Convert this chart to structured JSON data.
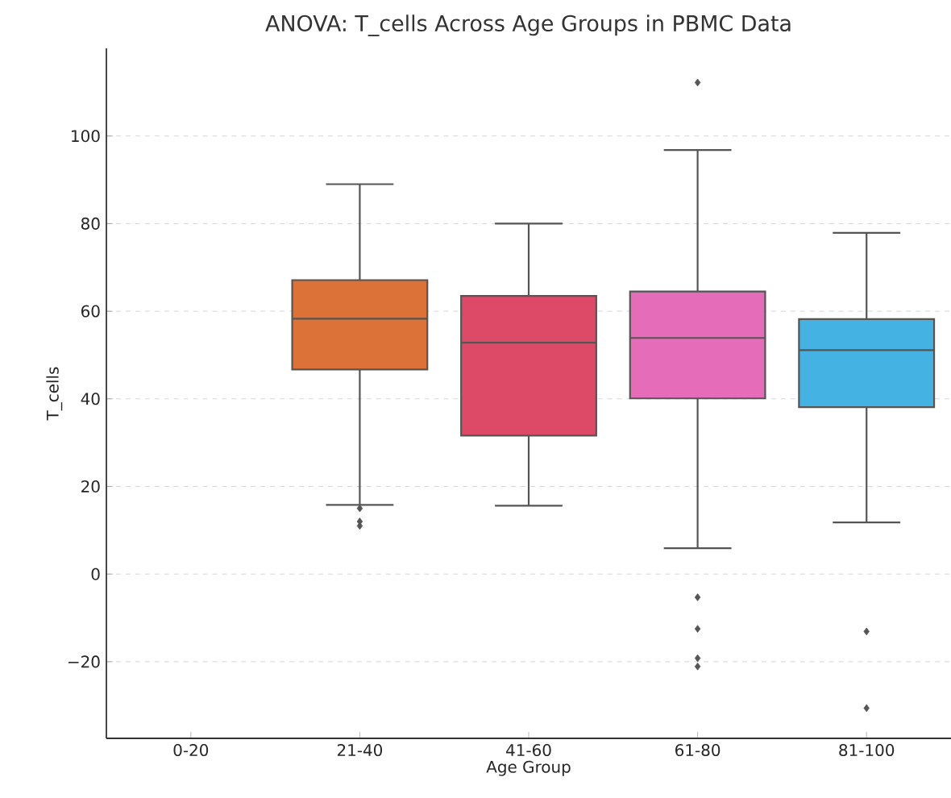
{
  "chart_data": {
    "type": "box",
    "title": "ANOVA: T_cells Across Age Groups in PBMC Data",
    "xlabel": "Age Group",
    "ylabel": "T_cells",
    "categories": [
      "0-20",
      "21-40",
      "41-60",
      "61-80",
      "81-100"
    ],
    "colors": [
      null,
      "#dd7238",
      "#dc4a68",
      "#e56cb8",
      "#44b2e2"
    ],
    "boxes": [
      null,
      {
        "low": 15.8,
        "q1": 46.7,
        "median": 58.3,
        "q3": 67.1,
        "high": 89,
        "outliers": [
          15,
          12,
          11
        ]
      },
      {
        "low": 15.6,
        "q1": 31.6,
        "median": 52.8,
        "q3": 63.5,
        "high": 80
      },
      {
        "low": 5.9,
        "q1": 40.1,
        "median": 53.9,
        "q3": 64.5,
        "high": 96.8,
        "outliers": [
          112.2,
          -5.3,
          -12.5,
          -19.2,
          -21.1
        ]
      },
      {
        "low": 11.8,
        "q1": 38.1,
        "median": 51.1,
        "q3": 58.2,
        "high": 77.9,
        "outliers": [
          -13.1,
          -30.6
        ]
      }
    ],
    "ylim": [
      -37.5,
      120
    ],
    "yticks": [
      {
        "value": -20,
        "label": "−20"
      },
      0,
      20,
      40,
      60,
      80,
      100
    ],
    "grid": "y",
    "marker": "diamond"
  }
}
